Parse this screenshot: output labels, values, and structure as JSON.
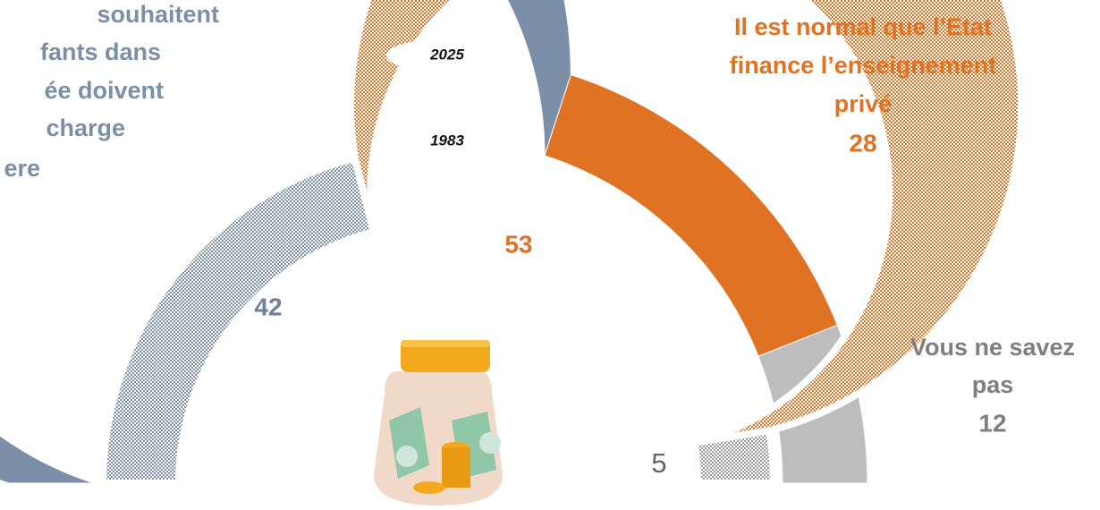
{
  "chart_data": {
    "type": "semi-donut",
    "categories": [
      [
        "souhaitent",
        "fants dans",
        "ée doivent",
        "charge",
        "ere"
      ],
      [
        "Il est normal que l’Etat",
        "finance l’enseignement",
        "privé"
      ],
      [
        "Vous ne savez",
        "pas"
      ]
    ],
    "colors": [
      "#7b90a8",
      "#e07224",
      "#bdbdbd"
    ],
    "series": [
      {
        "name": "2025",
        "values": [
          60,
          28,
          12
        ]
      },
      {
        "name": "1983",
        "values": [
          42,
          53,
          5
        ]
      }
    ]
  }
}
